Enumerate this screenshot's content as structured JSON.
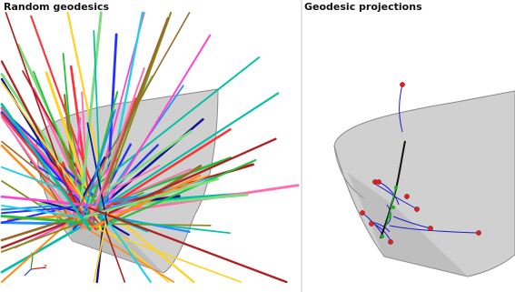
{
  "panels": [
    {
      "title": "Random geodesics",
      "axis_triad": {
        "y_label": "y",
        "z_label": "z",
        "x_color": "#cc2222",
        "y_color": "#229922",
        "z_color": "#2233cc"
      },
      "surface_colors": {
        "fill": "#c8c8c8",
        "edge": "#888888"
      },
      "line_palette": [
        "#ff3333",
        "#22c03a",
        "#2233ff",
        "#ffd21f",
        "#22cfe8",
        "#ff44d0",
        "#8b8b1a",
        "#ff8c1a",
        "#9a6a2a",
        "#111199",
        "#ff6fb0",
        "#7ddc7d",
        "#1e90ff",
        "#b02020",
        "#00bfa5"
      ]
    },
    {
      "title": "Geodesic projections",
      "surface_colors": {
        "fill": "#c8c8c8",
        "edge": "#888888"
      },
      "curve_color": "#1a1acc",
      "marker_color": "#dd2222",
      "path_color": "#111111"
    }
  ]
}
